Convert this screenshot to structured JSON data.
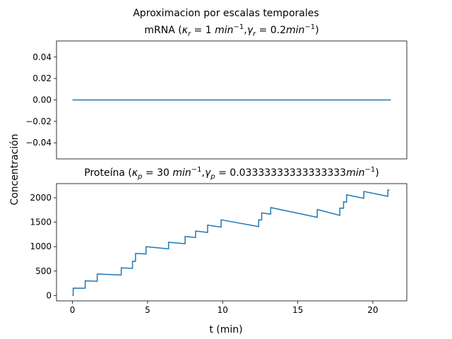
{
  "figure": {
    "suptitle": "Aproximacion por escalas temporales",
    "ylabel": "Concentración",
    "xlabel": "t (min)"
  },
  "chart_data": [
    {
      "type": "line",
      "title": "mRNA (κr = 1 min⁻¹,γr = 0.2min⁻¹)",
      "title_parts": {
        "pre": "mRNA (",
        "k": "κ",
        "ksub": "r",
        "kval": " = 1 ",
        "unit": "min",
        "exp": "−1",
        "mid": ",",
        "g": "γ",
        "gsub": "r",
        "gval": " = 0.2",
        "gunit": "min",
        "gexp": "−1",
        "post": ")"
      },
      "xlim": [
        -1.06,
        22.26
      ],
      "ylim": [
        -0.055,
        0.055
      ],
      "yticks": [
        -0.04,
        -0.02,
        0.0,
        0.02,
        0.04
      ],
      "ytick_labels": [
        "−0.04",
        "−0.02",
        "0.00",
        "0.02",
        "0.04"
      ],
      "xticks": [],
      "series": [
        {
          "color": "#1f77b4",
          "x": [
            0,
            21.2
          ],
          "y": [
            0,
            0
          ]
        }
      ]
    },
    {
      "type": "line",
      "title": "Proteína (κp = 30 min⁻¹,γp = 0.03333333333333333min⁻¹)",
      "title_parts": {
        "pre": "Proteína (",
        "k": "κ",
        "ksub": "p",
        "kval": " = 30 ",
        "unit": "min",
        "exp": "−1",
        "mid": ",",
        "g": "γ",
        "gsub": "p",
        "gval": " = 0.03333333333333333",
        "gunit": "min",
        "gexp": "−1",
        "post": ")"
      },
      "xlim": [
        -1.06,
        22.26
      ],
      "ylim": [
        -110,
        2290
      ],
      "yticks": [
        0,
        500,
        1000,
        1500,
        2000
      ],
      "ytick_labels": [
        "0",
        "500",
        "1000",
        "1500",
        "2000"
      ],
      "xticks": [
        0,
        5,
        10,
        15,
        20
      ],
      "xtick_labels": [
        "0",
        "5",
        "10",
        "15",
        "20"
      ],
      "series": [
        {
          "color": "#1f77b4",
          "segments": [
            {
              "x0": 0,
              "x1": 0.05,
              "y0": 0,
              "y1": 0
            },
            {
              "x0": 0.05,
              "x1": 0.85,
              "y0": 150,
              "y1": 148
            },
            {
              "x0": 0.85,
              "x1": 1.65,
              "y0": 300,
              "y1": 292
            },
            {
              "x0": 1.65,
              "x1": 3.25,
              "y0": 440,
              "y1": 420
            },
            {
              "x0": 3.25,
              "x1": 4.0,
              "y0": 565,
              "y1": 555
            },
            {
              "x0": 4.0,
              "x1": 4.2,
              "y0": 700,
              "y1": 698
            },
            {
              "x0": 4.2,
              "x1": 4.9,
              "y0": 860,
              "y1": 850
            },
            {
              "x0": 4.9,
              "x1": 6.4,
              "y0": 1000,
              "y1": 955
            },
            {
              "x0": 6.4,
              "x1": 7.5,
              "y0": 1090,
              "y1": 1060
            },
            {
              "x0": 7.5,
              "x1": 8.2,
              "y0": 1210,
              "y1": 1185
            },
            {
              "x0": 8.2,
              "x1": 9.0,
              "y0": 1320,
              "y1": 1290
            },
            {
              "x0": 9.0,
              "x1": 9.9,
              "y0": 1440,
              "y1": 1400
            },
            {
              "x0": 9.9,
              "x1": 12.4,
              "y0": 1550,
              "y1": 1410
            },
            {
              "x0": 12.4,
              "x1": 12.6,
              "y0": 1550,
              "y1": 1545
            },
            {
              "x0": 12.6,
              "x1": 13.2,
              "y0": 1690,
              "y1": 1665
            },
            {
              "x0": 13.2,
              "x1": 16.3,
              "y0": 1800,
              "y1": 1600
            },
            {
              "x0": 16.3,
              "x1": 17.8,
              "y0": 1760,
              "y1": 1640
            },
            {
              "x0": 17.8,
              "x1": 18.05,
              "y0": 1790,
              "y1": 1785
            },
            {
              "x0": 18.05,
              "x1": 18.25,
              "y0": 1920,
              "y1": 1910
            },
            {
              "x0": 18.25,
              "x1": 19.4,
              "y0": 2060,
              "y1": 1990
            },
            {
              "x0": 19.4,
              "x1": 21.0,
              "y0": 2130,
              "y1": 2030
            },
            {
              "x0": 21.0,
              "x1": 21.1,
              "y0": 2160,
              "y1": 2160
            }
          ]
        }
      ]
    }
  ]
}
